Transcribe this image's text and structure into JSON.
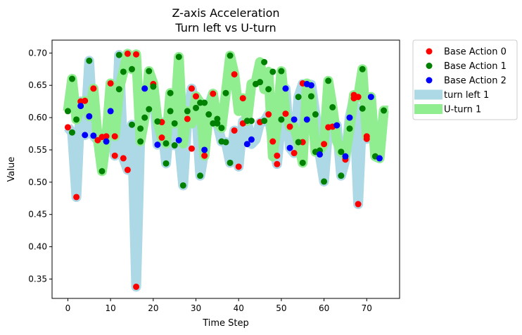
{
  "chart_data": {
    "type": "scatter",
    "title": "Z-axis Acceleration",
    "subtitle": "Turn left vs U-turn",
    "xlabel": "Time Step",
    "ylabel": "Value",
    "xlim": [
      -3.7,
      77.7
    ],
    "ylim": [
      0.32,
      0.72
    ],
    "xticks": [
      0,
      10,
      20,
      30,
      40,
      50,
      60,
      70
    ],
    "yticks": [
      0.35,
      0.4,
      0.45,
      0.5,
      0.55,
      0.6,
      0.65,
      0.7
    ],
    "grid": false,
    "legend_position": "outside-top-right",
    "bands": [
      {
        "name": "turn left 1",
        "color": "#add8e6",
        "x": [
          0,
          1,
          2,
          3,
          4,
          5,
          6,
          7,
          8,
          9,
          10,
          11,
          12,
          13,
          14,
          15,
          16,
          17,
          18,
          19,
          20,
          21,
          22,
          23,
          24,
          25,
          26,
          27,
          28,
          29,
          30,
          31,
          32,
          33,
          34,
          35,
          36,
          37,
          38,
          39,
          40,
          41,
          42,
          43,
          44,
          45,
          46,
          47,
          48,
          49,
          50,
          51,
          52,
          53,
          54,
          55,
          56,
          57,
          58,
          59,
          60,
          61,
          62,
          63,
          64,
          65,
          66,
          67,
          68,
          69,
          70,
          71,
          72,
          73,
          74,
          75
        ],
        "y": [
          0.585,
          0.577,
          0.477,
          0.625,
          0.573,
          0.688,
          0.572,
          0.565,
          0.57,
          0.563,
          0.61,
          0.541,
          0.697,
          0.537,
          0.519,
          0.589,
          0.338,
          0.583,
          0.645,
          0.613,
          0.648,
          0.558,
          0.593,
          0.529,
          0.61,
          0.557,
          0.565,
          0.495,
          0.598,
          0.645,
          0.615,
          0.51,
          0.55,
          0.619,
          0.637,
          0.591,
          0.563,
          0.562,
          0.53,
          0.58,
          0.524,
          0.594,
          0.595,
          0.559,
          0.566,
          0.592,
          0.594,
          0.605,
          0.563,
          0.528,
          0.597,
          0.645,
          0.553,
          0.545,
          0.632,
          0.652,
          0.597,
          0.651,
          0.605,
          0.543,
          0.501,
          0.585,
          0.586,
          0.588,
          0.51,
          0.535,
          0.6,
          0.63,
          0.466,
          0.615,
          0.567,
          0.632,
          0.54,
          0.537,
          0.611,
          0.611
        ]
      },
      {
        "name": "U-turn 1",
        "color": "#90ee90",
        "x": [
          0,
          1,
          2,
          3,
          4,
          5,
          6,
          7,
          8,
          9,
          10,
          11,
          12,
          13,
          14,
          15,
          16,
          17,
          18,
          19,
          20,
          21,
          22,
          23,
          24,
          25,
          26,
          27,
          28,
          29,
          30,
          31,
          32,
          33,
          34,
          35,
          36,
          37,
          38,
          39,
          40,
          41,
          42,
          43,
          44,
          45,
          46,
          47,
          48,
          49,
          50,
          51,
          52,
          53,
          54,
          55,
          56,
          57,
          58,
          59,
          60,
          61,
          62,
          63,
          64,
          65,
          66,
          67,
          68,
          69,
          70,
          71,
          72,
          73,
          74,
          75
        ],
        "y": [
          0.61,
          0.66,
          0.597,
          0.618,
          0.626,
          0.602,
          0.645,
          0.568,
          0.517,
          0.568,
          0.653,
          0.571,
          0.644,
          0.671,
          0.699,
          0.675,
          0.698,
          0.563,
          0.6,
          0.672,
          0.653,
          0.594,
          0.568,
          0.56,
          0.638,
          0.591,
          0.694,
          0.56,
          0.61,
          0.591,
          0.633,
          0.623,
          0.541,
          0.605,
          0.637,
          0.591,
          0.584,
          0.638,
          0.696,
          0.667,
          0.61,
          0.63,
          0.595,
          0.652,
          0.655,
          0.686,
          0.644,
          0.671,
          0.54,
          0.59,
          0.672,
          0.606,
          0.586,
          0.586,
          0.562,
          0.53,
          0.653,
          0.633,
          0.547,
          0.549,
          0.559,
          0.657,
          0.616,
          0.564,
          0.547,
          0.541,
          0.583,
          0.635,
          0.632,
          0.675,
          0.571,
          0.632,
          0.54,
          0.537,
          0.611,
          0.611
        ]
      }
    ],
    "series": [
      {
        "name": "Base Action 0",
        "color": "#ff0000",
        "points": [
          [
            0,
            0.585
          ],
          [
            2,
            0.477
          ],
          [
            3,
            0.625
          ],
          [
            4,
            0.626
          ],
          [
            6,
            0.645
          ],
          [
            7,
            0.565
          ],
          [
            8,
            0.57
          ],
          [
            9,
            0.571
          ],
          [
            10,
            0.653
          ],
          [
            11,
            0.571
          ],
          [
            11,
            0.541
          ],
          [
            13,
            0.537
          ],
          [
            14,
            0.699
          ],
          [
            14,
            0.519
          ],
          [
            16,
            0.698
          ],
          [
            16,
            0.338
          ],
          [
            20,
            0.652
          ],
          [
            22,
            0.569
          ],
          [
            22,
            0.593
          ],
          [
            28,
            0.598
          ],
          [
            29,
            0.645
          ],
          [
            29,
            0.552
          ],
          [
            30,
            0.633
          ],
          [
            32,
            0.541
          ],
          [
            34,
            0.637
          ],
          [
            39,
            0.667
          ],
          [
            39,
            0.58
          ],
          [
            40,
            0.524
          ],
          [
            41,
            0.63
          ],
          [
            41,
            0.591
          ],
          [
            45,
            0.593
          ],
          [
            47,
            0.605
          ],
          [
            48,
            0.563
          ],
          [
            49,
            0.541
          ],
          [
            49,
            0.528
          ],
          [
            51,
            0.606
          ],
          [
            52,
            0.586
          ],
          [
            53,
            0.545
          ],
          [
            55,
            0.653
          ],
          [
            55,
            0.562
          ],
          [
            60,
            0.559
          ],
          [
            61,
            0.585
          ],
          [
            62,
            0.586
          ],
          [
            65,
            0.535
          ],
          [
            67,
            0.635
          ],
          [
            67,
            0.63
          ],
          [
            68,
            0.632
          ],
          [
            68,
            0.466
          ],
          [
            70,
            0.571
          ],
          [
            70,
            0.567
          ]
        ]
      },
      {
        "name": "Base Action 1",
        "color": "#008000",
        "points": [
          [
            0,
            0.61
          ],
          [
            1,
            0.66
          ],
          [
            1,
            0.577
          ],
          [
            2,
            0.597
          ],
          [
            5,
            0.688
          ],
          [
            8,
            0.517
          ],
          [
            12,
            0.697
          ],
          [
            12,
            0.644
          ],
          [
            13,
            0.671
          ],
          [
            15,
            0.675
          ],
          [
            15,
            0.589
          ],
          [
            17,
            0.583
          ],
          [
            17,
            0.563
          ],
          [
            18,
            0.6
          ],
          [
            19,
            0.672
          ],
          [
            19,
            0.613
          ],
          [
            20,
            0.648
          ],
          [
            21,
            0.594
          ],
          [
            23,
            0.56
          ],
          [
            23,
            0.529
          ],
          [
            24,
            0.638
          ],
          [
            24,
            0.61
          ],
          [
            25,
            0.591
          ],
          [
            25,
            0.557
          ],
          [
            26,
            0.694
          ],
          [
            27,
            0.495
          ],
          [
            28,
            0.61
          ],
          [
            30,
            0.615
          ],
          [
            31,
            0.623
          ],
          [
            31,
            0.51
          ],
          [
            32,
            0.623
          ],
          [
            33,
            0.605
          ],
          [
            34,
            0.591
          ],
          [
            35,
            0.591
          ],
          [
            35,
            0.598
          ],
          [
            36,
            0.584
          ],
          [
            36,
            0.563
          ],
          [
            37,
            0.638
          ],
          [
            37,
            0.562
          ],
          [
            38,
            0.696
          ],
          [
            38,
            0.53
          ],
          [
            42,
            0.595
          ],
          [
            43,
            0.595
          ],
          [
            44,
            0.652
          ],
          [
            45,
            0.655
          ],
          [
            46,
            0.686
          ],
          [
            46,
            0.595
          ],
          [
            47,
            0.644
          ],
          [
            48,
            0.671
          ],
          [
            50,
            0.672
          ],
          [
            50,
            0.597
          ],
          [
            54,
            0.632
          ],
          [
            54,
            0.562
          ],
          [
            55,
            0.53
          ],
          [
            57,
            0.633
          ],
          [
            58,
            0.605
          ],
          [
            58,
            0.547
          ],
          [
            59,
            0.549
          ],
          [
            60,
            0.501
          ],
          [
            61,
            0.657
          ],
          [
            62,
            0.616
          ],
          [
            64,
            0.547
          ],
          [
            64,
            0.51
          ],
          [
            66,
            0.583
          ],
          [
            69,
            0.675
          ],
          [
            69,
            0.614
          ],
          [
            72,
            0.54
          ],
          [
            74,
            0.611
          ]
        ]
      },
      {
        "name": "Base Action 2",
        "color": "#0000ff",
        "points": [
          [
            3,
            0.618
          ],
          [
            4,
            0.573
          ],
          [
            5,
            0.602
          ],
          [
            6,
            0.572
          ],
          [
            9,
            0.563
          ],
          [
            10,
            0.61
          ],
          [
            18,
            0.645
          ],
          [
            21,
            0.558
          ],
          [
            26,
            0.565
          ],
          [
            32,
            0.55
          ],
          [
            42,
            0.559
          ],
          [
            43,
            0.566
          ],
          [
            51,
            0.645
          ],
          [
            52,
            0.553
          ],
          [
            53,
            0.597
          ],
          [
            56,
            0.652
          ],
          [
            56,
            0.597
          ],
          [
            57,
            0.65
          ],
          [
            59,
            0.543
          ],
          [
            63,
            0.588
          ],
          [
            65,
            0.54
          ],
          [
            66,
            0.6
          ],
          [
            71,
            0.632
          ],
          [
            73,
            0.537
          ]
        ]
      }
    ]
  }
}
